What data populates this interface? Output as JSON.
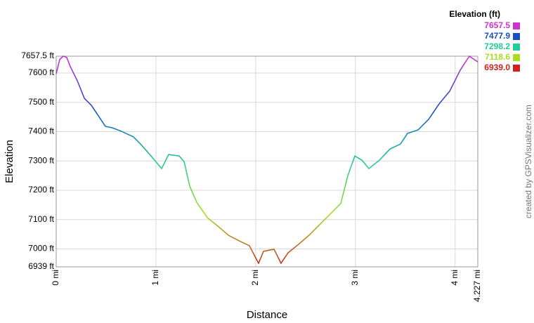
{
  "chart_data": {
    "type": "line",
    "y_label": "Elevation",
    "x_label": "Distance",
    "credit": "created by GPSVisualizer.com",
    "x": [
      0,
      0.035,
      0.07,
      0.106,
      0.141,
      0.211,
      0.282,
      0.352,
      0.423,
      0.493,
      0.564,
      0.669,
      0.775,
      0.845,
      0.951,
      1.057,
      1.127,
      1.233,
      1.282,
      1.339,
      1.409,
      1.515,
      1.62,
      1.726,
      1.832,
      1.937,
      2.029,
      2.078,
      2.184,
      2.254,
      2.325,
      2.431,
      2.536,
      2.642,
      2.748,
      2.853,
      2.924,
      2.994,
      3.065,
      3.135,
      3.241,
      3.347,
      3.452,
      3.522,
      3.628,
      3.734,
      3.84,
      3.945,
      4.051,
      4.142,
      4.227
    ],
    "values": [
      7598,
      7646,
      7657.5,
      7653,
      7622,
      7574,
      7514,
      7490,
      7454,
      7418,
      7413,
      7399,
      7382,
      7358,
      7317,
      7274,
      7322,
      7317,
      7298,
      7214,
      7159,
      7107,
      7078,
      7047,
      7028,
      7011,
      6951,
      6992,
      6999,
      6951,
      6987,
      7016,
      7047,
      7083,
      7119,
      7155,
      7250,
      7317,
      7303,
      7274,
      7303,
      7341,
      7358,
      7394,
      7406,
      7442,
      7495,
      7538,
      7610,
      7657.5,
      7638
    ],
    "xlim": [
      0,
      4.227
    ],
    "xticks": [
      {
        "value": 0,
        "label": "0 mi"
      },
      {
        "value": 1,
        "label": "1 mi"
      },
      {
        "value": 2,
        "label": "2 mi"
      },
      {
        "value": 3,
        "label": "3 mi"
      },
      {
        "value": 4,
        "label": "4 mi"
      },
      {
        "value": 4.227,
        "label": "4.227 mi"
      }
    ],
    "ylim": [
      6939,
      7657.5
    ],
    "yticks": [
      {
        "value": 6939,
        "label": "6939 ft"
      },
      {
        "value": 7000,
        "label": "7000 ft"
      },
      {
        "value": 7100,
        "label": "7100 ft"
      },
      {
        "value": 7200,
        "label": "7200 ft"
      },
      {
        "value": 7300,
        "label": "7300 ft"
      },
      {
        "value": 7400,
        "label": "7400 ft"
      },
      {
        "value": 7500,
        "label": "7500 ft"
      },
      {
        "value": 7600,
        "label": "7600 ft"
      },
      {
        "value": 7657.5,
        "label": "7657.5 ft"
      }
    ],
    "grid": true,
    "color_scale": {
      "title": "Elevation (ft)",
      "stops": [
        {
          "value": 7657.5,
          "color": "#cc33cc"
        },
        {
          "value": 7477.9,
          "color": "#1a4fc4"
        },
        {
          "value": 7298.2,
          "color": "#22cc99"
        },
        {
          "value": 7118.6,
          "color": "#aadd22"
        },
        {
          "value": 6939,
          "label": "6939.0",
          "color": "#cc2222"
        }
      ]
    }
  }
}
